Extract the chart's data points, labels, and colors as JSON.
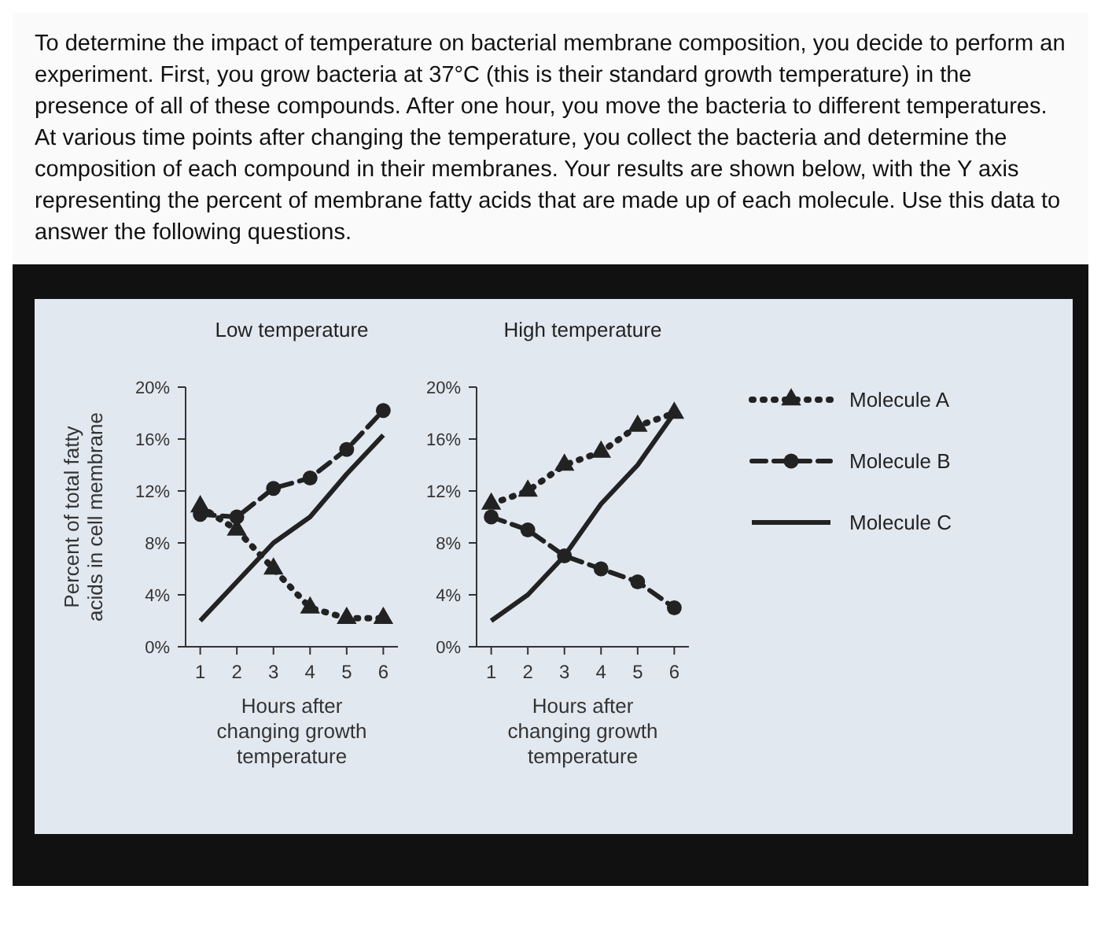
{
  "chart_data": [
    {
      "type": "line",
      "title": "Low temperature",
      "xlabel": "Hours after changing growth temperature",
      "ylabel": "Percent of total fatty acids in cell membrane",
      "annotations": [
        "To determine the impact of temperature on bacterial membrane composition, you decide to perform an experiment. First, you grow bacteria at 37°C (this is their standard growth temperature) in the presence of all of these compounds. After one hour, you move the bacteria to different temperatures. At various time points after changing the temperature, you collect the bacteria and determine the composition of each compound in their membranes. Your results are shown below, with the Y axis representing the percent of membrane fatty acids that are made up of each molecule. Use this data to answer the following questions."
      ],
      "x": [
        1,
        2,
        3,
        4,
        5,
        6
      ],
      "xlim": [
        0.6,
        6.4
      ],
      "xticks": [
        1,
        2,
        3,
        4,
        5,
        6
      ],
      "ylim": [
        0,
        20
      ],
      "yticks": [
        {
          "value": 0,
          "label": "0%"
        },
        {
          "value": 4,
          "label": "4%"
        },
        {
          "value": 8,
          "label": "8%"
        },
        {
          "value": 12,
          "label": "12%"
        },
        {
          "value": 16,
          "label": "16%"
        },
        {
          "value": 20,
          "label": "20%"
        }
      ],
      "legend": false,
      "series": [
        {
          "color": "#222222",
          "marker": "triangle",
          "line_style": "dotted",
          "values": [
            10.8,
            9,
            6,
            3,
            2.2,
            2.2
          ]
        },
        {
          "color": "#222222",
          "marker": "circle",
          "line_style": "dashed",
          "values": [
            10.2,
            10,
            12.2,
            13,
            15.2,
            18.2
          ]
        },
        {
          "color": "#222222",
          "marker": "none",
          "line_style": "solid",
          "values": [
            2,
            5,
            8,
            10,
            13.3,
            16.3
          ]
        }
      ]
    },
    {
      "type": "line",
      "title": "High temperature",
      "xlabel": "Hours after changing growth temperature",
      "x": [
        1,
        2,
        3,
        4,
        5,
        6
      ],
      "xlim": [
        0.6,
        6.4
      ],
      "xticks": [
        1,
        2,
        3,
        4,
        5,
        6
      ],
      "ylim": [
        0,
        20
      ],
      "yticks": [
        {
          "value": 0,
          "label": "0%"
        },
        {
          "value": 4,
          "label": "4%"
        },
        {
          "value": 8,
          "label": "8%"
        },
        {
          "value": 12,
          "label": "12%"
        },
        {
          "value": 16,
          "label": "16%"
        },
        {
          "value": 20,
          "label": "20%"
        }
      ],
      "legend": "right",
      "series": [
        {
          "name": "Molecule A",
          "color": "#222222",
          "marker": "triangle",
          "line_style": "dotted",
          "values": [
            11,
            12,
            14,
            15,
            17,
            18
          ]
        },
        {
          "name": "Molecule B",
          "color": "#222222",
          "marker": "circle",
          "line_style": "dashed",
          "values": [
            10,
            9,
            7,
            6,
            5,
            3
          ]
        },
        {
          "name": "Molecule C",
          "color": "#222222",
          "marker": "none",
          "line_style": "solid",
          "values": [
            2,
            4,
            7,
            11,
            14,
            18
          ]
        }
      ]
    }
  ]
}
